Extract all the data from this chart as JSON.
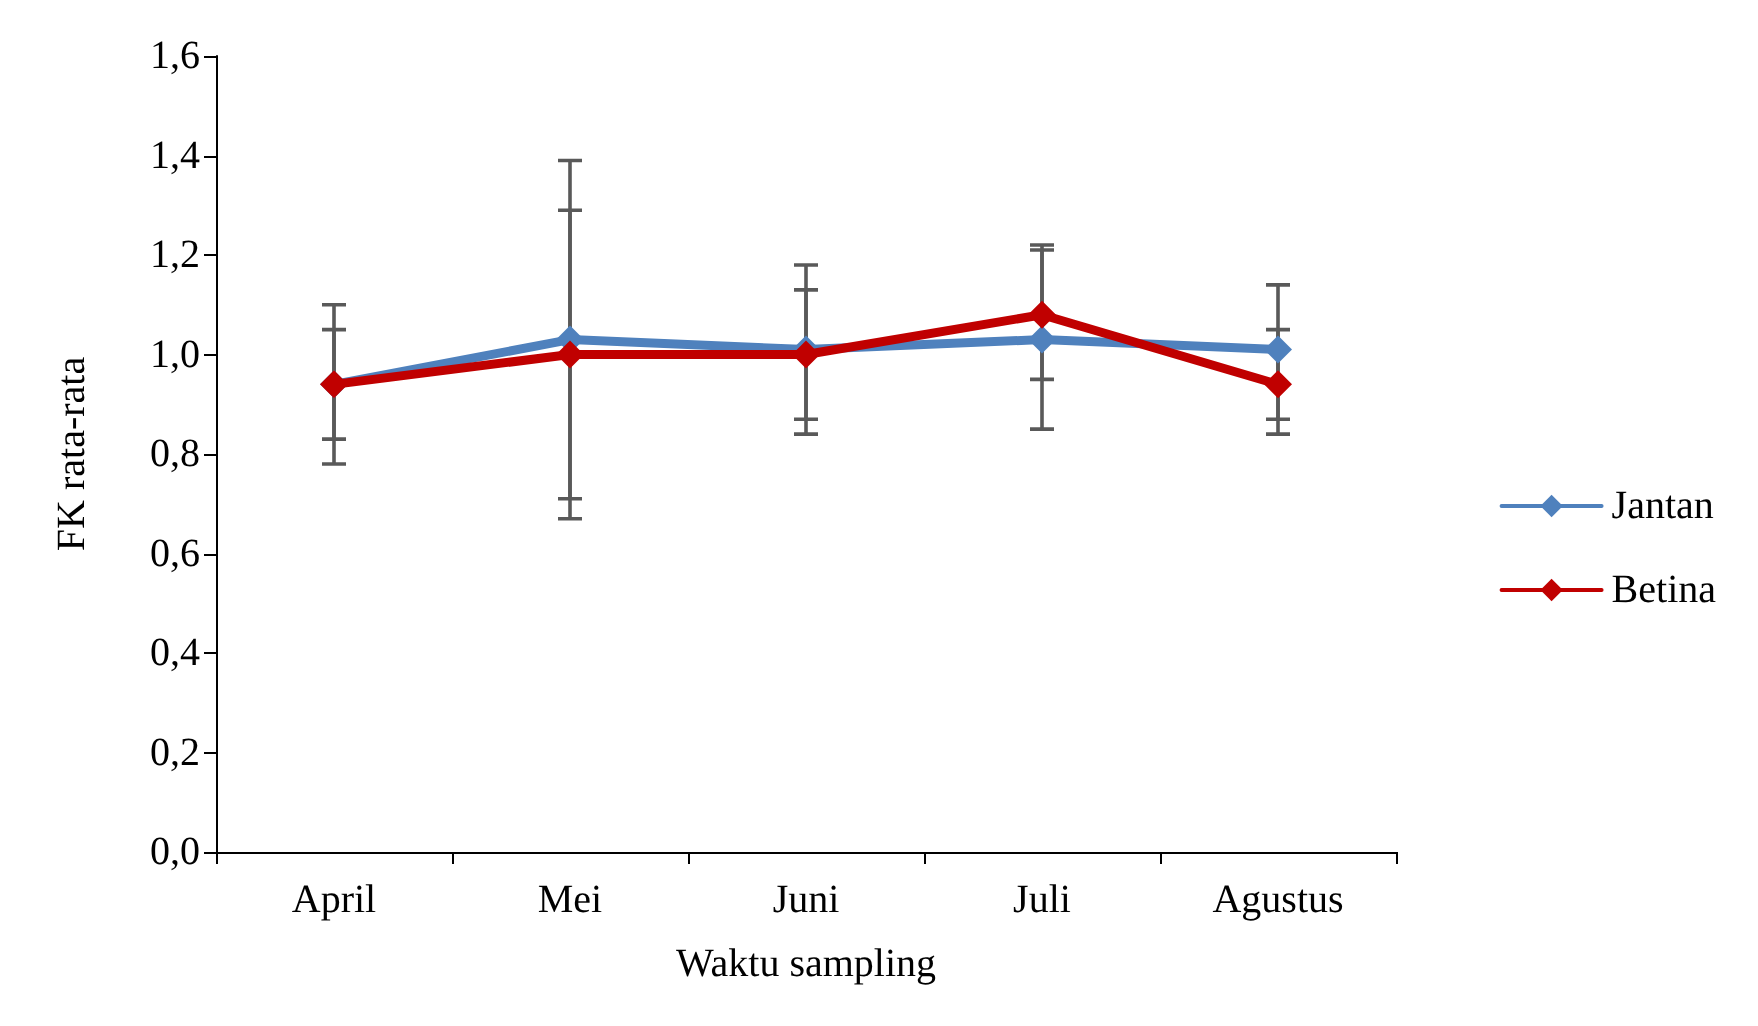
{
  "chart_data": {
    "type": "line",
    "xlabel": "Waktu sampling",
    "ylabel": "FK rata-rata",
    "categories": [
      "April",
      "Mei",
      "Juni",
      "Juli",
      "Agustus"
    ],
    "series": [
      {
        "name": "Jantan",
        "color": "#4f81bd",
        "values": [
          0.94,
          1.03,
          1.01,
          1.03,
          1.01
        ],
        "errors": [
          [
            0.78,
            1.1
          ],
          [
            0.67,
            1.39
          ],
          [
            0.84,
            1.18
          ],
          [
            0.85,
            1.22
          ],
          [
            0.87,
            1.14
          ]
        ]
      },
      {
        "name": "Betina",
        "color": "#c00000",
        "values": [
          0.94,
          1.0,
          1.0,
          1.08,
          0.94
        ],
        "errors": [
          [
            0.83,
            1.05
          ],
          [
            0.71,
            1.29
          ],
          [
            0.87,
            1.13
          ],
          [
            0.95,
            1.21
          ],
          [
            0.84,
            1.05
          ]
        ]
      }
    ],
    "ylim": [
      0,
      1.6
    ],
    "yticks": [
      {
        "value": 0,
        "label": "0,0"
      },
      {
        "value": 0.2,
        "label": "0,2"
      },
      {
        "value": 0.4,
        "label": "0,4"
      },
      {
        "value": 0.6,
        "label": "0,6"
      },
      {
        "value": 0.8,
        "label": "0,8"
      },
      {
        "value": 1,
        "label": "1,0"
      },
      {
        "value": 1.2,
        "label": "1,2"
      },
      {
        "value": 1.4,
        "label": "1,4"
      },
      {
        "value": 1.6,
        "label": "1,6"
      }
    ],
    "grid": false,
    "legend": "right",
    "marker": "diamond",
    "line_style": "solid"
  }
}
